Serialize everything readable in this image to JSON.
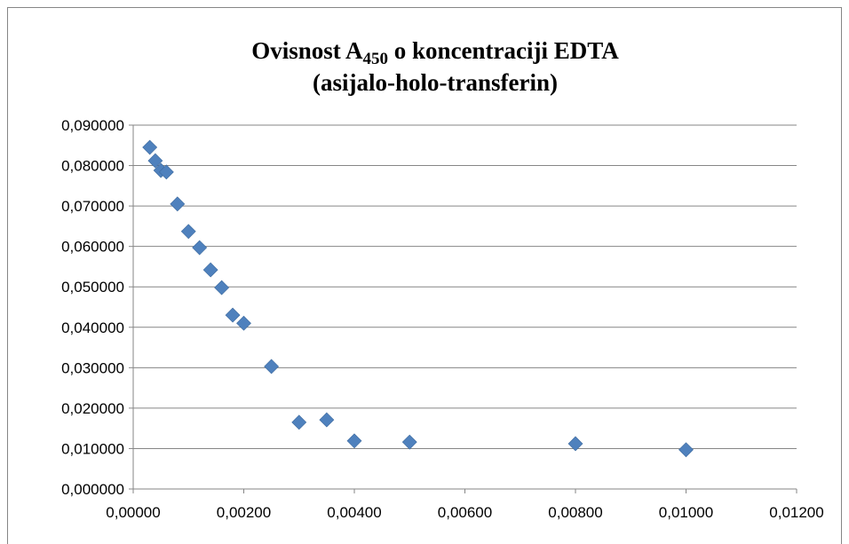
{
  "chart_data": {
    "type": "scatter",
    "title": [
      "Ovisnost A",
      "450",
      " o koncentraciji EDTA",
      "(asijalo-holo-transferin)"
    ],
    "x": [
      0.0003,
      0.0004,
      0.0005,
      0.0006,
      0.0008,
      0.001,
      0.0012,
      0.0014,
      0.0016,
      0.0018,
      0.002,
      0.0025,
      0.003,
      0.0035,
      0.004,
      0.005,
      0.008,
      0.01
    ],
    "series": [
      {
        "color": "#4f81bd",
        "values": [
          0.0845,
          0.0812,
          0.0788,
          0.0784,
          0.0705,
          0.0637,
          0.0597,
          0.0542,
          0.0498,
          0.043,
          0.041,
          0.0303,
          0.0165,
          0.0171,
          0.0119,
          0.0116,
          0.0112,
          0.0097
        ]
      }
    ],
    "xlim": [
      0,
      0.012
    ],
    "ylim": [
      0,
      0.09
    ],
    "xticks": [
      {
        "value": 0,
        "label": "0,00000"
      },
      {
        "value": 0.002,
        "label": "0,00200"
      },
      {
        "value": 0.004,
        "label": "0,00400"
      },
      {
        "value": 0.006,
        "label": "0,00600"
      },
      {
        "value": 0.008,
        "label": "0,00800"
      },
      {
        "value": 0.01,
        "label": "0,01000"
      },
      {
        "value": 0.012,
        "label": "0,01200"
      }
    ],
    "yticks": [
      {
        "value": 0,
        "label": "0,000000"
      },
      {
        "value": 0.01,
        "label": "0,010000"
      },
      {
        "value": 0.02,
        "label": "0,020000"
      },
      {
        "value": 0.03,
        "label": "0,030000"
      },
      {
        "value": 0.04,
        "label": "0,040000"
      },
      {
        "value": 0.05,
        "label": "0,050000"
      },
      {
        "value": 0.06,
        "label": "0,060000"
      },
      {
        "value": 0.07,
        "label": "0,070000"
      },
      {
        "value": 0.08,
        "label": "0,080000"
      },
      {
        "value": 0.09,
        "label": "0,090000"
      }
    ],
    "grid": true
  }
}
